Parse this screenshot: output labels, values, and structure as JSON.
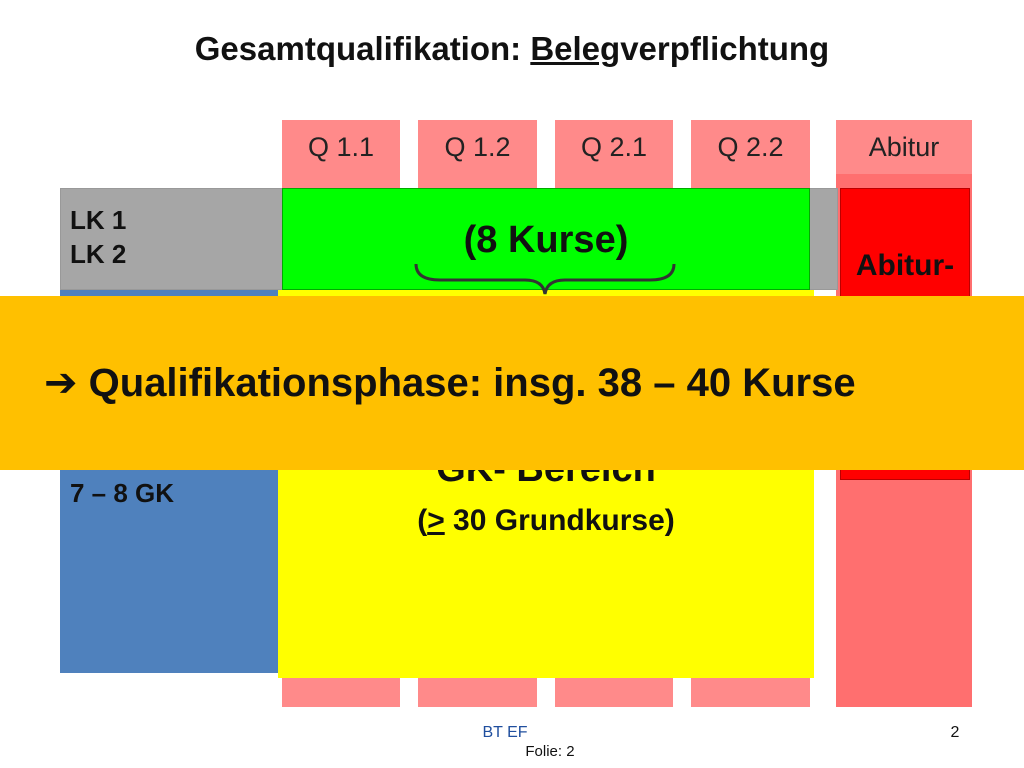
{
  "title": {
    "prefix": "Gesamtqualifikation: ",
    "underlined": "Beleg",
    "suffix": "verpflichtung"
  },
  "columns": [
    "Q 1.1",
    "Q 1.2",
    "Q 2.1",
    "Q 2.2",
    "Abitur"
  ],
  "left_box": {
    "lk1": "LK 1",
    "lk2": "LK 2",
    "gk": "7 – 8 GK"
  },
  "green_box": {
    "label": "(8 Kurse)"
  },
  "red_box": {
    "label": "Abitur-"
  },
  "yellow_box": {
    "heading": "GK- Bereich",
    "open": "(",
    "underlined": ">",
    "rest": " 30 Grundkurse)"
  },
  "banner": {
    "arrow": "➔",
    "text": "Qualifikationsphase: insg. 38 – 40 Kurse"
  },
  "footer": {
    "center": "BT EF",
    "page": "2",
    "slide": "Folie: 2"
  }
}
